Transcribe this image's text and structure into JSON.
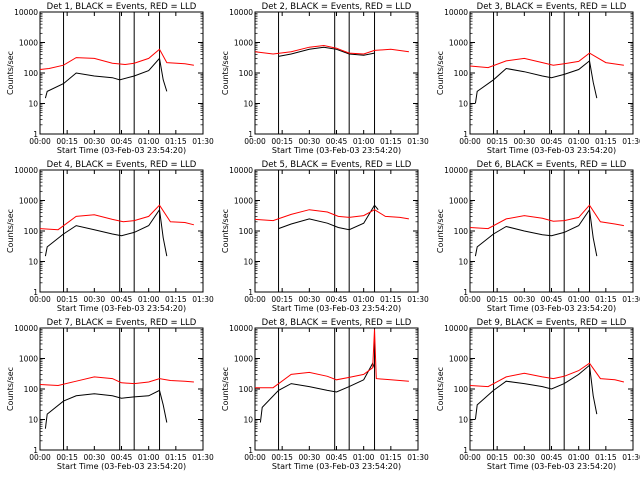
{
  "figure": {
    "x_ticks": [
      "00:00",
      "00:15",
      "00:30",
      "00:45",
      "01:00",
      "01:15",
      "01:30"
    ],
    "y_ticks": [
      "1",
      "10",
      "100",
      "1000",
      "10000"
    ],
    "colors": {
      "events": "#000000",
      "lld": "#ff0000"
    }
  },
  "chart_data": [
    {
      "type": "line",
      "title": "Det 1, BLACK = Events, RED = LLD",
      "xlabel": "Start Time (03-Feb-03 23:54:20)",
      "ylabel": "Counts/sec",
      "xlim": [
        "00:00",
        "01:30"
      ],
      "ylim": [
        1,
        10000
      ],
      "y_scale": "log",
      "vertical_markers": [
        "00:13",
        "00:44",
        "00:52",
        "01:06"
      ],
      "series": [
        {
          "color": "#000000",
          "x": [
            "00:03",
            "00:04",
            "00:13",
            "00:20",
            "00:30",
            "00:40",
            "00:44",
            "00:52",
            "01:00",
            "01:06",
            "01:08",
            "01:10"
          ],
          "y": [
            15,
            25,
            45,
            100,
            80,
            70,
            60,
            80,
            120,
            300,
            60,
            25
          ]
        },
        {
          "color": "#ff0000",
          "x": [
            "00:00",
            "00:05",
            "00:13",
            "00:20",
            "00:30",
            "00:40",
            "00:47",
            "00:52",
            "01:00",
            "01:06",
            "01:10",
            "01:20",
            "01:25"
          ],
          "y": [
            130,
            140,
            180,
            320,
            300,
            210,
            190,
            210,
            300,
            600,
            220,
            200,
            180
          ]
        }
      ]
    },
    {
      "type": "line",
      "title": "Det 2, BLACK = Events, RED = LLD",
      "xlabel": "Start Time (03-Feb-03 23:54:20)",
      "ylabel": "Counts/sec",
      "xlim": [
        "00:00",
        "01:30"
      ],
      "ylim": [
        1,
        10000
      ],
      "y_scale": "log",
      "vertical_markers": [
        "00:13",
        "00:44",
        "00:52",
        "01:06"
      ],
      "series": [
        {
          "color": "#000000",
          "x": [
            "00:13",
            "00:20",
            "00:30",
            "00:38",
            "00:45",
            "00:52",
            "01:00",
            "01:06"
          ],
          "y": [
            350,
            420,
            600,
            700,
            600,
            420,
            380,
            450
          ]
        },
        {
          "color": "#ff0000",
          "x": [
            "00:00",
            "00:10",
            "00:20",
            "00:30",
            "00:38",
            "00:45",
            "00:52",
            "01:00",
            "01:06",
            "01:15",
            "01:25"
          ],
          "y": [
            500,
            420,
            500,
            700,
            800,
            650,
            450,
            420,
            550,
            600,
            500
          ]
        }
      ]
    },
    {
      "type": "line",
      "title": "Det 3, BLACK = Events, RED = LLD",
      "xlabel": "Start Time (03-Feb-03 23:54:20)",
      "ylabel": "Counts/sec",
      "xlim": [
        "00:00",
        "01:30"
      ],
      "ylim": [
        1,
        10000
      ],
      "y_scale": "log",
      "vertical_markers": [
        "00:13",
        "00:44",
        "00:52",
        "01:06"
      ],
      "series": [
        {
          "color": "#000000",
          "x": [
            "00:03",
            "00:04",
            "00:13",
            "00:20",
            "00:30",
            "00:40",
            "00:45",
            "00:52",
            "01:00",
            "01:06",
            "01:08",
            "01:10"
          ],
          "y": [
            10,
            25,
            60,
            140,
            110,
            80,
            70,
            90,
            130,
            250,
            50,
            15
          ]
        },
        {
          "color": "#ff0000",
          "x": [
            "00:00",
            "00:10",
            "00:20",
            "00:30",
            "00:40",
            "00:46",
            "00:52",
            "01:00",
            "01:06",
            "01:15",
            "01:25"
          ],
          "y": [
            170,
            150,
            250,
            300,
            220,
            180,
            200,
            240,
            450,
            220,
            180
          ]
        }
      ]
    },
    {
      "type": "line",
      "title": "Det 4, BLACK = Events, RED = LLD",
      "xlabel": "Start Time (03-Feb-03 23:54:20)",
      "ylabel": "Counts/sec",
      "xlim": [
        "00:00",
        "01:30"
      ],
      "ylim": [
        1,
        10000
      ],
      "y_scale": "log",
      "vertical_markers": [
        "00:13",
        "00:44",
        "00:52",
        "01:06"
      ],
      "series": [
        {
          "color": "#000000",
          "x": [
            "00:03",
            "00:04",
            "00:13",
            "00:20",
            "00:30",
            "00:40",
            "00:45",
            "00:52",
            "01:00",
            "01:06",
            "01:08",
            "01:10"
          ],
          "y": [
            15,
            30,
            80,
            150,
            110,
            80,
            70,
            90,
            150,
            500,
            60,
            15
          ]
        },
        {
          "color": "#ff0000",
          "x": [
            "00:00",
            "00:10",
            "00:20",
            "00:30",
            "00:40",
            "00:46",
            "00:52",
            "01:00",
            "01:06",
            "01:12",
            "01:20",
            "01:25"
          ],
          "y": [
            120,
            110,
            300,
            340,
            240,
            200,
            220,
            300,
            700,
            200,
            190,
            160
          ]
        }
      ]
    },
    {
      "type": "line",
      "title": "Det 5, BLACK = Events, RED = LLD",
      "xlabel": "Start Time (03-Feb-03 23:54:20)",
      "ylabel": "Counts/sec",
      "xlim": [
        "00:00",
        "01:30"
      ],
      "ylim": [
        1,
        10000
      ],
      "y_scale": "log",
      "vertical_markers": [
        "00:13",
        "00:44",
        "00:52",
        "01:06"
      ],
      "series": [
        {
          "color": "#000000",
          "x": [
            "00:13",
            "00:20",
            "00:30",
            "00:40",
            "00:46",
            "00:52",
            "01:00",
            "01:06",
            "01:08"
          ],
          "y": [
            120,
            170,
            250,
            180,
            130,
            110,
            180,
            700,
            500
          ]
        },
        {
          "color": "#ff0000",
          "x": [
            "00:00",
            "00:10",
            "00:20",
            "00:30",
            "00:40",
            "00:46",
            "00:52",
            "01:00",
            "01:06",
            "01:12",
            "01:20",
            "01:25"
          ],
          "y": [
            240,
            220,
            350,
            500,
            420,
            300,
            280,
            320,
            500,
            300,
            280,
            250
          ]
        }
      ]
    },
    {
      "type": "line",
      "title": "Det 6, BLACK = Events, RED = LLD",
      "xlabel": "Start Time (03-Feb-03 23:54:20)",
      "ylabel": "Counts/sec",
      "xlim": [
        "00:00",
        "01:30"
      ],
      "ylim": [
        1,
        10000
      ],
      "y_scale": "log",
      "vertical_markers": [
        "00:13",
        "00:44",
        "00:52",
        "01:06"
      ],
      "series": [
        {
          "color": "#000000",
          "x": [
            "00:03",
            "00:04",
            "00:13",
            "00:20",
            "00:30",
            "00:40",
            "00:45",
            "00:52",
            "01:00",
            "01:06",
            "01:08",
            "01:10"
          ],
          "y": [
            15,
            30,
            80,
            140,
            100,
            75,
            70,
            90,
            150,
            500,
            60,
            15
          ]
        },
        {
          "color": "#ff0000",
          "x": [
            "00:00",
            "00:10",
            "00:20",
            "00:30",
            "00:40",
            "00:46",
            "00:52",
            "01:00",
            "01:06",
            "01:12",
            "01:20",
            "01:25"
          ],
          "y": [
            130,
            120,
            250,
            320,
            260,
            210,
            220,
            280,
            700,
            200,
            170,
            150
          ]
        }
      ]
    },
    {
      "type": "line",
      "title": "Det 7, BLACK = Events, RED = LLD",
      "xlabel": "Start Time (03-Feb-03 23:54:20)",
      "ylabel": "Counts/sec",
      "xlim": [
        "00:00",
        "01:30"
      ],
      "ylim": [
        1,
        10000
      ],
      "y_scale": "log",
      "vertical_markers": [
        "00:13",
        "00:44",
        "00:52",
        "01:06"
      ],
      "series": [
        {
          "color": "#000000",
          "x": [
            "00:03",
            "00:04",
            "00:13",
            "00:20",
            "00:30",
            "00:40",
            "00:45",
            "00:52",
            "01:00",
            "01:06",
            "01:08",
            "01:10"
          ],
          "y": [
            5,
            15,
            40,
            60,
            70,
            60,
            50,
            55,
            60,
            90,
            30,
            8
          ]
        },
        {
          "color": "#ff0000",
          "x": [
            "00:00",
            "00:10",
            "00:20",
            "00:30",
            "00:40",
            "00:45",
            "00:52",
            "01:00",
            "01:06",
            "01:12",
            "01:20",
            "01:25"
          ],
          "y": [
            140,
            130,
            180,
            250,
            220,
            160,
            150,
            170,
            220,
            190,
            180,
            170
          ]
        }
      ]
    },
    {
      "type": "line",
      "title": "Det 8, BLACK = Events, RED = LLD",
      "xlabel": "Start Time (03-Feb-03 23:54:20)",
      "ylabel": "Counts/sec",
      "xlim": [
        "00:00",
        "01:30"
      ],
      "ylim": [
        1,
        10000
      ],
      "y_scale": "log",
      "vertical_markers": [
        "00:13",
        "00:44",
        "00:52",
        "01:06"
      ],
      "series": [
        {
          "color": "#000000",
          "x": [
            "00:03",
            "00:04",
            "00:13",
            "00:20",
            "00:30",
            "00:40",
            "00:45",
            "00:52",
            "01:00",
            "01:05",
            "01:06"
          ],
          "y": [
            8,
            25,
            90,
            150,
            120,
            90,
            80,
            120,
            200,
            700,
            500
          ]
        },
        {
          "color": "#ff0000",
          "x": [
            "00:00",
            "00:10",
            "00:20",
            "00:30",
            "00:40",
            "00:45",
            "00:52",
            "01:00",
            "01:05",
            "01:06",
            "01:07",
            "01:15",
            "01:25"
          ],
          "y": [
            110,
            110,
            300,
            350,
            260,
            200,
            240,
            300,
            500,
            9000,
            220,
            200,
            180
          ]
        }
      ]
    },
    {
      "type": "line",
      "title": "Det 9, BLACK = Events, RED = LLD",
      "xlabel": "Start Time (03-Feb-03 23:54:20)",
      "ylabel": "Counts/sec",
      "xlim": [
        "00:00",
        "01:30"
      ],
      "ylim": [
        1,
        10000
      ],
      "y_scale": "log",
      "vertical_markers": [
        "00:13",
        "00:44",
        "00:52",
        "01:06"
      ],
      "series": [
        {
          "color": "#000000",
          "x": [
            "00:03",
            "00:04",
            "00:13",
            "00:20",
            "00:30",
            "00:40",
            "00:45",
            "00:52",
            "01:00",
            "01:06",
            "01:08",
            "01:10"
          ],
          "y": [
            10,
            30,
            90,
            180,
            150,
            120,
            100,
            150,
            300,
            600,
            60,
            15
          ]
        },
        {
          "color": "#ff0000",
          "x": [
            "00:00",
            "00:10",
            "00:20",
            "00:30",
            "00:40",
            "00:46",
            "00:52",
            "01:00",
            "01:06",
            "01:12",
            "01:20",
            "01:25"
          ],
          "y": [
            130,
            120,
            250,
            330,
            250,
            220,
            260,
            400,
            700,
            220,
            200,
            170
          ]
        }
      ]
    }
  ]
}
